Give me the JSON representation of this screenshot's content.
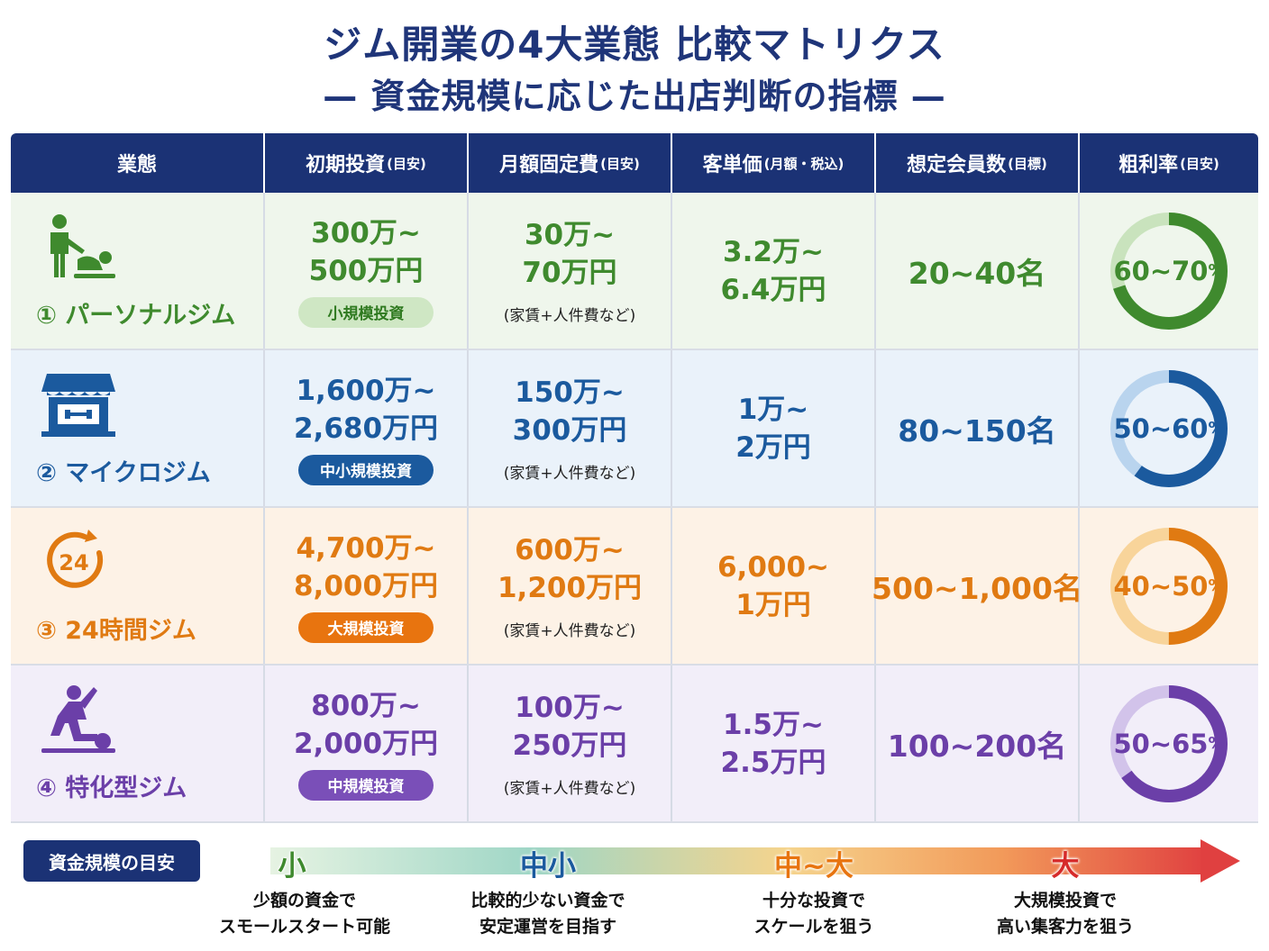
{
  "title": {
    "line1": "ジム開業の4大業態 比較マトリクス",
    "line2": "— 資金規模に応じた出店判断の指標 —"
  },
  "headers": [
    {
      "main": "業態",
      "sub": ""
    },
    {
      "main": "初期投資",
      "sub": "(目安)"
    },
    {
      "main": "月額固定費",
      "sub": "(目安)"
    },
    {
      "main": "客単価",
      "sub": "(月額・税込)"
    },
    {
      "main": "想定会員数",
      "sub": "(目標)"
    },
    {
      "main": "粗利率",
      "sub": "(目安)"
    }
  ],
  "rows": [
    {
      "name": "① パーソナルジム",
      "icon": "personal-trainer-icon",
      "color": "#3f8a2e",
      "bg": "#eff6ec",
      "ring_light": "#c9e3bd",
      "tag_bg": "#cfe7c4",
      "tag_fg": "#2f7a20",
      "invest_top": "300万~",
      "invest_bottom": "500万円",
      "invest_tag": "小規模投資",
      "fixed_top": "30万~",
      "fixed_bottom": "70万円",
      "fixed_note": "(家賃+人件費など)",
      "price_top": "3.2万~",
      "price_bottom": "6.4万円",
      "members": "20~40名",
      "margin": "60~70",
      "margin_unit": "%",
      "margin_max": 70
    },
    {
      "name": "② マイクロジム",
      "icon": "storefront-dumbbell-icon",
      "color": "#1b5a9e",
      "bg": "#eaf2fa",
      "ring_light": "#b9d4ee",
      "tag_bg": "#1b5a9e",
      "tag_fg": "#ffffff",
      "invest_top": "1,600万~",
      "invest_bottom": "2,680万円",
      "invest_tag": "中小規模投資",
      "fixed_top": "150万~",
      "fixed_bottom": "300万円",
      "fixed_note": "(家賃+人件費など)",
      "price_top": "1万~",
      "price_bottom": "2万円",
      "members": "80~150名",
      "margin": "50~60",
      "margin_unit": "%",
      "margin_max": 60
    },
    {
      "name": "③ 24時間ジム",
      "icon": "24-hour-clock-icon",
      "color": "#e07a12",
      "bg": "#fdf2e6",
      "ring_light": "#f8d49a",
      "tag_bg": "#e8740f",
      "tag_fg": "#ffffff",
      "invest_top": "4,700万~",
      "invest_bottom": "8,000万円",
      "invest_tag": "大規模投資",
      "fixed_top": "600万~",
      "fixed_bottom": "1,200万円",
      "fixed_note": "(家賃+人件費など)",
      "price_top": "6,000~",
      "price_bottom": "1万円",
      "members": "500~1,000名",
      "margin": "40~50",
      "margin_unit": "%",
      "margin_max": 50
    },
    {
      "name": "④ 特化型ジム",
      "icon": "specialized-training-icon",
      "color": "#6b3fa8",
      "bg": "#f2eef9",
      "ring_light": "#d2c3ea",
      "tag_bg": "#7a4fb8",
      "tag_fg": "#ffffff",
      "invest_top": "800万~",
      "invest_bottom": "2,000万円",
      "invest_tag": "中規模投資",
      "fixed_top": "100万~",
      "fixed_bottom": "250万円",
      "fixed_note": "(家賃+人件費など)",
      "price_top": "1.5万~",
      "price_bottom": "2.5万円",
      "members": "100~200名",
      "margin": "50~65",
      "margin_unit": "%",
      "margin_max": 65
    }
  ],
  "legend": {
    "badge": "資金規模の目安",
    "levels": [
      {
        "label": "小",
        "color": "#3f8a2e",
        "desc1": "少額の資金で",
        "desc2": "スモールスタート可能"
      },
      {
        "label": "中小",
        "color": "#1b5a9e",
        "desc1": "比較的少ない資金で",
        "desc2": "安定運営を目指す"
      },
      {
        "label": "中~大",
        "color": "#e8740f",
        "desc1": "十分な投資で",
        "desc2": "スケールを狙う"
      },
      {
        "label": "大",
        "color": "#d62a2a",
        "desc1": "大規模投資で",
        "desc2": "高い集客力を狙う"
      }
    ]
  }
}
